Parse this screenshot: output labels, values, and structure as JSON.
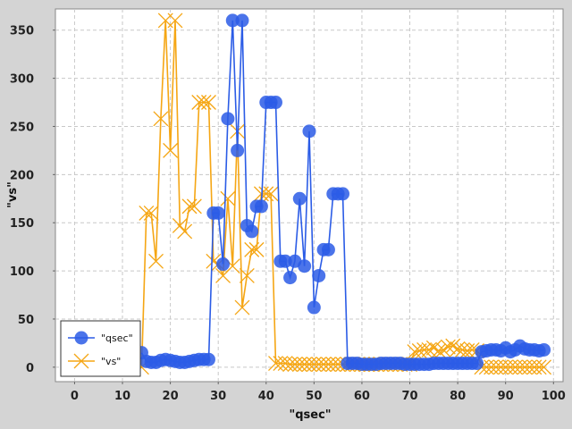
{
  "chart_data": {
    "type": "line",
    "title": "",
    "xlabel": "\"qsec\"",
    "ylabel": "\"vs\"",
    "xlim": [
      -4,
      102
    ],
    "ylim": [
      -15,
      372
    ],
    "xticks": [
      0,
      10,
      20,
      30,
      40,
      50,
      60,
      70,
      80,
      90,
      100
    ],
    "yticks": [
      0,
      50,
      100,
      150,
      200,
      250,
      300,
      350
    ],
    "grid": true,
    "legend_position": "bottom-left",
    "series": [
      {
        "name": "\"qsec\"",
        "marker": "circle",
        "color": "#2b5ce6",
        "x": [
          14,
          15,
          16,
          17,
          18,
          19,
          20,
          21,
          22,
          23,
          24,
          25,
          26,
          27,
          28,
          29,
          30,
          31,
          32,
          33,
          34,
          35,
          36,
          37,
          38,
          39,
          40,
          41,
          42,
          43,
          44,
          45,
          46,
          47,
          48,
          49,
          50,
          51,
          52,
          53,
          54,
          55,
          56,
          57,
          58,
          59,
          60,
          61,
          62,
          63,
          64,
          65,
          66,
          67,
          68,
          69,
          70,
          71,
          72,
          73,
          74,
          75,
          76,
          77,
          78,
          79,
          80,
          81,
          82,
          83,
          84,
          85,
          86,
          87,
          88,
          89,
          90,
          91,
          92,
          93,
          94,
          95,
          96,
          97,
          98
        ],
        "y": [
          15,
          6,
          5,
          5,
          7,
          8,
          7,
          6,
          5,
          5,
          6,
          7,
          8,
          8,
          8,
          160,
          160,
          107,
          258,
          360,
          225,
          360,
          147,
          141,
          167,
          167,
          275,
          275,
          275,
          110,
          110,
          93,
          110,
          175,
          105,
          245,
          62,
          95,
          122,
          122,
          180,
          180,
          180,
          4,
          4,
          4,
          3,
          3,
          3,
          3,
          4,
          4,
          4,
          4,
          4,
          3,
          3,
          3,
          3,
          3,
          3,
          4,
          4,
          4,
          4,
          4,
          4,
          4,
          4,
          4,
          4,
          16,
          17,
          18,
          18,
          17,
          20,
          16,
          18,
          22,
          19,
          18,
          18,
          17,
          18
        ]
      },
      {
        "name": "\"vs\"",
        "marker": "x",
        "color": "#f5a614",
        "x": [
          14,
          15,
          16,
          17,
          18,
          19,
          20,
          21,
          22,
          23,
          24,
          25,
          26,
          27,
          28,
          29,
          30,
          31,
          32,
          33,
          34,
          35,
          36,
          37,
          38,
          39,
          40,
          41,
          42,
          43,
          44,
          45,
          46,
          47,
          48,
          49,
          50,
          51,
          52,
          53,
          54,
          55,
          56,
          57,
          58,
          59,
          60,
          61,
          62,
          63,
          64,
          65,
          66,
          67,
          68,
          69,
          70,
          71,
          72,
          73,
          74,
          75,
          76,
          77,
          78,
          79,
          80,
          81,
          82,
          83,
          84,
          85,
          86,
          87,
          88,
          89,
          90,
          91,
          92,
          93,
          94,
          95,
          96,
          97,
          98
        ],
        "y": [
          0,
          160,
          160,
          110,
          258,
          360,
          225,
          360,
          147,
          141,
          167,
          167,
          275,
          275,
          275,
          110,
          107,
          95,
          175,
          105,
          245,
          62,
          95,
          122,
          122,
          180,
          180,
          180,
          4,
          4,
          4,
          3,
          3,
          3,
          3,
          3,
          3,
          3,
          3,
          3,
          3,
          3,
          3,
          3,
          3,
          3,
          3,
          3,
          3,
          3,
          3,
          3,
          3,
          3,
          3,
          3,
          3,
          16,
          17,
          18,
          18,
          20,
          17,
          18,
          21,
          22,
          19,
          18,
          17,
          18,
          17,
          0,
          0,
          0,
          0,
          0,
          0,
          0,
          0,
          0,
          0,
          0,
          0,
          0,
          0
        ]
      }
    ]
  }
}
